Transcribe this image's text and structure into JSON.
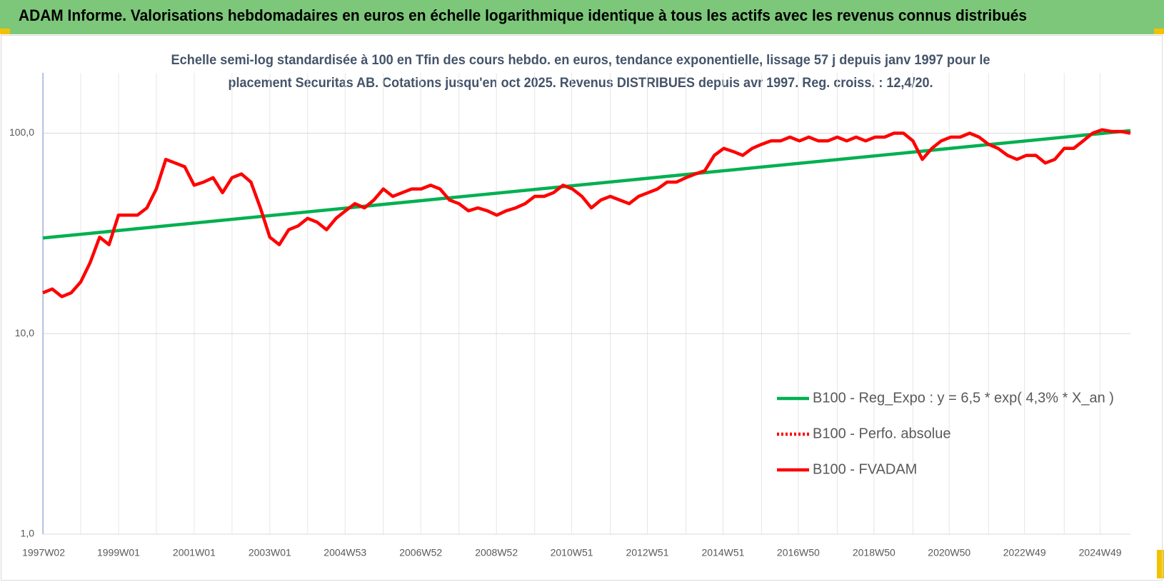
{
  "chart_data": {
    "type": "line",
    "title": "ADAM Informe. Valorisations hebdomadaires en euros en échelle logarithmique identique à tous les actifs avec les revenus connus distribués",
    "subtitle": [
      "Echelle semi-log standardisée à 100 en Tfin des cours hebdo. en euros, tendance exponentielle, lissage 57 j depuis janv 1997 pour le",
      "placement Securitas AB. Cotations jusqu'en oct 2025. Revenus DISTRIBUES depuis avr 1997.  Reg. croiss. : 12,4/20."
    ],
    "log_scale": true,
    "grid": true,
    "legend": "lower right",
    "xlim": [
      1997.0,
      2025.75
    ],
    "xticks": [
      {
        "value": 1997.02,
        "label": "1997W02"
      },
      {
        "value": 1999.0,
        "label": "1999W01"
      },
      {
        "value": 2001.0,
        "label": "2001W01"
      },
      {
        "value": 2003.0,
        "label": "2003W01"
      },
      {
        "value": 2004.99,
        "label": "2004W53"
      },
      {
        "value": 2006.99,
        "label": "2006W52"
      },
      {
        "value": 2008.99,
        "label": "2008W52"
      },
      {
        "value": 2010.98,
        "label": "2010W51"
      },
      {
        "value": 2012.98,
        "label": "2012W51"
      },
      {
        "value": 2014.98,
        "label": "2014W51"
      },
      {
        "value": 2016.97,
        "label": "2016W50"
      },
      {
        "value": 2018.97,
        "label": "2018W50"
      },
      {
        "value": 2020.96,
        "label": "2020W50"
      },
      {
        "value": 2022.95,
        "label": "2022W49"
      },
      {
        "value": 2024.95,
        "label": "2024W49"
      }
    ],
    "xminorticks": [
      1998,
      2000,
      2002,
      2004,
      2006,
      2008,
      2010,
      2012,
      2014,
      2016,
      2018,
      2020,
      2022,
      2024
    ],
    "ylim": [
      1,
      200
    ],
    "yticks": [
      {
        "value": 1,
        "label": "1,0"
      },
      {
        "value": 10,
        "label": "10,0"
      },
      {
        "value": 100,
        "label": "100,0"
      }
    ],
    "series": [
      {
        "name": "B100 - Reg_Expo : y = 6,5 * exp( 4,3% *  X_an )",
        "color": "#00b050",
        "style": "solid",
        "x": [
          1997.0,
          2025.75
        ],
        "values": [
          30,
          103
        ]
      },
      {
        "name": "B100 - Perfo. absolue",
        "color": "#ff0000",
        "style": "dotted"
      },
      {
        "name": "B100 - FVADAM",
        "color": "#ff0000",
        "style": "solid",
        "x": [
          1997,
          1997.25,
          1997.5,
          1997.75,
          1998,
          1998.25,
          1998.5,
          1998.75,
          1999,
          1999.25,
          1999.5,
          1999.75,
          2000,
          2000.25,
          2000.5,
          2000.75,
          2001,
          2001.25,
          2001.5,
          2001.75,
          2002,
          2002.25,
          2002.5,
          2002.75,
          2003,
          2003.25,
          2003.5,
          2003.75,
          2004,
          2004.25,
          2004.5,
          2004.75,
          2005,
          2005.25,
          2005.5,
          2005.75,
          2006,
          2006.25,
          2006.5,
          2006.75,
          2007,
          2007.25,
          2007.5,
          2007.75,
          2008,
          2008.25,
          2008.5,
          2008.75,
          2009,
          2009.25,
          2009.5,
          2009.75,
          2010,
          2010.25,
          2010.5,
          2010.75,
          2011,
          2011.25,
          2011.5,
          2011.75,
          2012,
          2012.25,
          2012.5,
          2012.75,
          2013,
          2013.25,
          2013.5,
          2013.75,
          2014,
          2014.25,
          2014.5,
          2014.75,
          2015,
          2015.25,
          2015.5,
          2015.75,
          2016,
          2016.25,
          2016.5,
          2016.75,
          2017,
          2017.25,
          2017.5,
          2017.75,
          2018,
          2018.25,
          2018.5,
          2018.75,
          2019,
          2019.25,
          2019.5,
          2019.75,
          2020,
          2020.25,
          2020.5,
          2020.75,
          2021,
          2021.25,
          2021.5,
          2021.75,
          2022,
          2022.25,
          2022.5,
          2022.75,
          2023,
          2023.25,
          2023.5,
          2023.75,
          2024,
          2024.25,
          2024.5,
          2024.75,
          2025,
          2025.25,
          2025.5,
          2025.75
        ],
        "values": [
          16,
          16.7,
          15.3,
          16,
          18.1,
          22.6,
          30.3,
          27.8,
          39,
          39,
          39,
          42.4,
          52.7,
          74,
          71,
          68,
          55,
          57,
          60,
          50.5,
          60,
          62.6,
          57,
          42.4,
          30.3,
          27.8,
          33,
          34.5,
          37.6,
          36,
          33,
          37.6,
          41,
          44.5,
          42.4,
          46.4,
          52.7,
          48.4,
          50.5,
          52.7,
          52.7,
          55,
          52.7,
          46.4,
          44.5,
          41,
          42.4,
          41,
          39,
          41,
          42.4,
          44.5,
          48.4,
          48.4,
          50.5,
          55,
          52.7,
          48.4,
          42.4,
          46.4,
          48.4,
          46.4,
          44.5,
          48.4,
          50.5,
          52.7,
          57,
          57,
          60,
          62.6,
          65,
          77.5,
          84,
          81,
          77.5,
          84,
          88,
          91.5,
          91.5,
          95.6,
          91.5,
          95.6,
          91.5,
          91.5,
          95.6,
          91.5,
          95.6,
          91.5,
          95.6,
          95.6,
          100,
          100,
          91.5,
          74,
          84,
          91.5,
          95.6,
          95.6,
          100,
          95.6,
          88,
          84,
          77.5,
          74,
          77.5,
          77.5,
          71,
          74,
          84,
          84,
          91.5,
          100,
          104,
          102,
          102,
          100
        ]
      }
    ]
  }
}
